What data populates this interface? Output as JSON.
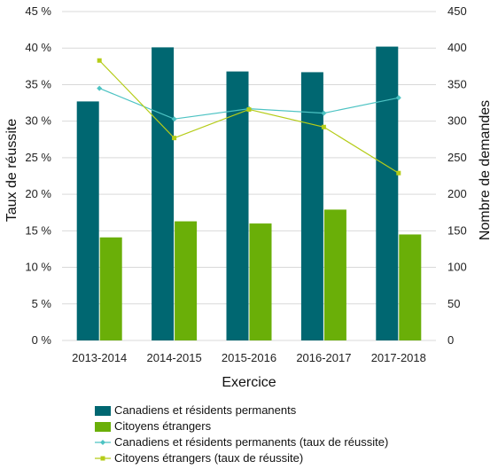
{
  "chart_data": {
    "type": "bar",
    "categories": [
      "2013-2014",
      "2014-2015",
      "2015-2016",
      "2016-2017",
      "2017-2018"
    ],
    "bar_series": [
      {
        "name": "Canadiens et résidents permanents",
        "axis": "right",
        "color": "#006771",
        "values": [
          327,
          401,
          368,
          367,
          402
        ]
      },
      {
        "name": "Citoyens étrangers",
        "axis": "right",
        "color": "#6aaf08",
        "values": [
          141,
          163,
          160,
          179,
          145
        ]
      }
    ],
    "line_series": [
      {
        "name": "Canadiens et résidents permanents (taux de réussite)",
        "axis": "left",
        "color": "#4dc3c3",
        "marker": "diamond",
        "values": [
          34.5,
          30.3,
          31.7,
          31.1,
          33.2
        ]
      },
      {
        "name": "Citoyens étrangers (taux de réussite)",
        "axis": "left",
        "color": "#b5cc18",
        "marker": "square",
        "values": [
          38.3,
          27.7,
          31.6,
          29.2,
          22.9
        ]
      }
    ],
    "ylabel_left": "Taux de réussite",
    "ylabel_right": "Nombre de demandes",
    "xlabel": "Exercice",
    "ylim_left": [
      0,
      45
    ],
    "ylim_right": [
      0,
      450
    ],
    "yticks_left": [
      "0 %",
      "5 %",
      "10 %",
      "15 %",
      "20 %",
      "25 %",
      "30 %",
      "35 %",
      "40 %",
      "45 %"
    ],
    "yticks_right": [
      "0",
      "50",
      "100",
      "150",
      "200",
      "250",
      "300",
      "350",
      "400",
      "450"
    ],
    "grid": true,
    "legend": "bottom"
  }
}
